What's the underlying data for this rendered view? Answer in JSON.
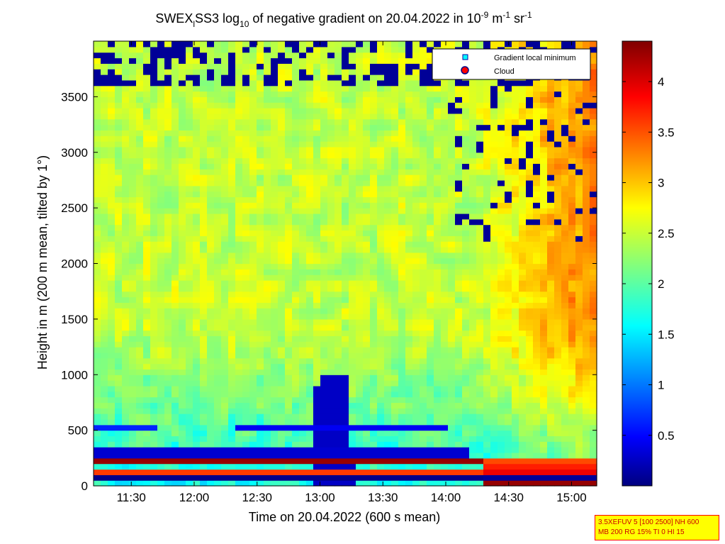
{
  "chart_data": {
    "type": "heatmap",
    "title": {
      "part1": "SWEX",
      "sub1": "l",
      "part2": "SS3 log",
      "sub2": "10",
      "part3": " of negative gradient on 20.04.2022 in 10",
      "sup1": "-9",
      "part4": " m",
      "sup2": "-1",
      "part5": " sr",
      "sup3": "-1"
    },
    "xlabel": "Time on 20.04.2022 (600 s mean)",
    "ylabel": "Height in m (200 m mean, tilted by 1°)",
    "x_ticks": [
      "11:30",
      "12:00",
      "12:30",
      "13:00",
      "13:30",
      "14:00",
      "14:30",
      "15:00"
    ],
    "x_tick_hours": [
      11.5,
      12.0,
      12.5,
      13.0,
      13.5,
      14.0,
      14.5,
      15.0
    ],
    "xlim": [
      11.2,
      15.2
    ],
    "y_ticks": [
      0,
      500,
      1000,
      1500,
      2000,
      2500,
      3000,
      3500
    ],
    "ylim": [
      0,
      4000
    ],
    "colorbar": {
      "ticks": [
        "0.5",
        "1",
        "1.5",
        "2",
        "2.5",
        "3",
        "3.5",
        "4"
      ],
      "tick_values": [
        0.5,
        1,
        1.5,
        2,
        2.5,
        3,
        3.5,
        4
      ],
      "range": [
        0,
        4.4
      ],
      "colormap": "jet"
    },
    "legend": {
      "placement": "top-right",
      "entries": [
        {
          "label": "Gradient local minimum",
          "color": "#00ffff",
          "marker": "square"
        },
        {
          "label": "Cloud",
          "color": "#ff0000",
          "marker": "circle"
        }
      ]
    },
    "features": {
      "background_level": 2.5,
      "upper_right_level": 3.3,
      "low_band_heights": [
        520,
        300
      ],
      "surface_bands_heights": [
        220,
        120,
        60
      ],
      "tower_center_hour": 13.1,
      "tower_top_height": 1000
    }
  },
  "info_box": {
    "line1": "3.5XEFUV 5 [100 2500] NH 600",
    "line2": "MB 200 RG 15% TI 0 HI 15"
  },
  "colors": {
    "legend_min": "#00ffff",
    "legend_cloud": "#ff0000",
    "info_bg": "#ffff00",
    "info_text": "#cc0000"
  }
}
